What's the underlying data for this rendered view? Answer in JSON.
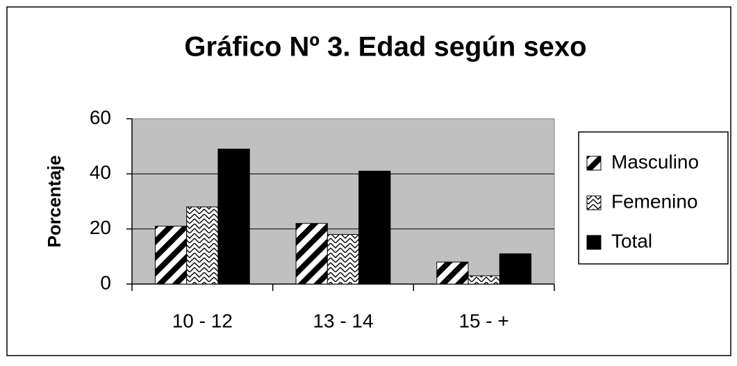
{
  "chart_data": {
    "type": "bar",
    "title": "Gráfico Nº 3. Edad según sexo",
    "y_label": "Porcentaje",
    "categories": [
      "10 - 12",
      "13 - 14",
      "15 - +"
    ],
    "series": [
      {
        "name": "Masculino",
        "color": "#000000",
        "pattern": "diagonal",
        "values": [
          21,
          22,
          8
        ]
      },
      {
        "name": "Femenino",
        "color": "#000000",
        "pattern": "zigzag",
        "values": [
          28,
          18,
          3
        ]
      },
      {
        "name": "Total",
        "color": "#000000",
        "pattern": "solid",
        "values": [
          49,
          41,
          11
        ]
      }
    ],
    "ylim": [
      0,
      60
    ],
    "yticks": [
      0,
      20,
      40,
      60
    ],
    "grid": true,
    "legend": "right"
  }
}
